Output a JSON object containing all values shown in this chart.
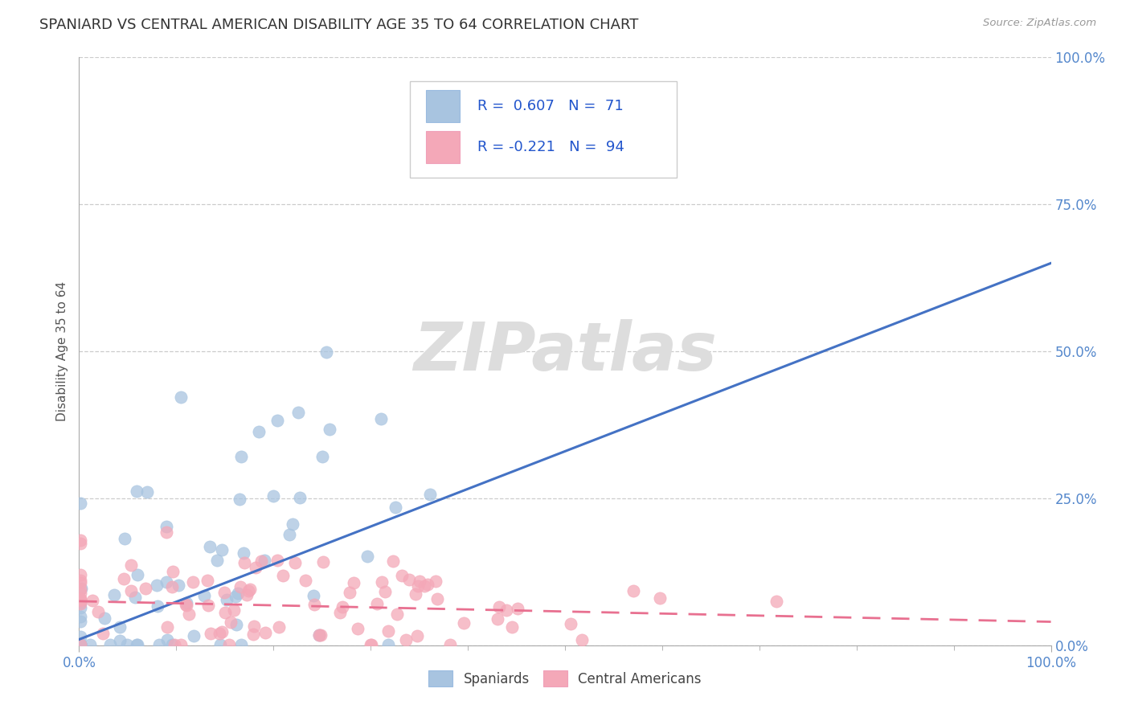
{
  "title": "SPANIARD VS CENTRAL AMERICAN DISABILITY AGE 35 TO 64 CORRELATION CHART",
  "source": "Source: ZipAtlas.com",
  "ylabel": "Disability Age 35 to 64",
  "xlim": [
    0.0,
    1.0
  ],
  "ylim": [
    0.0,
    1.0
  ],
  "xtick_labels": [
    "0.0%",
    "100.0%"
  ],
  "ytick_labels": [
    "0.0%",
    "25.0%",
    "50.0%",
    "75.0%",
    "100.0%"
  ],
  "ytick_positions": [
    0.0,
    0.25,
    0.5,
    0.75,
    1.0
  ],
  "spaniard_color": "#a8c4e0",
  "central_american_color": "#f4a8b8",
  "spaniard_line_color": "#4472c4",
  "central_american_line_color": "#e87090",
  "legend_text1": "R =  0.607   N =  71",
  "legend_text2": "R = -0.221   N =  94",
  "legend_color": "#2255cc",
  "watermark": "ZIPatlas",
  "sp_line_x0": 0.0,
  "sp_line_y0": 0.01,
  "sp_line_x1": 1.0,
  "sp_line_y1": 0.65,
  "ca_line_x0": 0.0,
  "ca_line_y0": 0.075,
  "ca_line_x1": 1.0,
  "ca_line_y1": 0.04,
  "background_color": "#ffffff"
}
